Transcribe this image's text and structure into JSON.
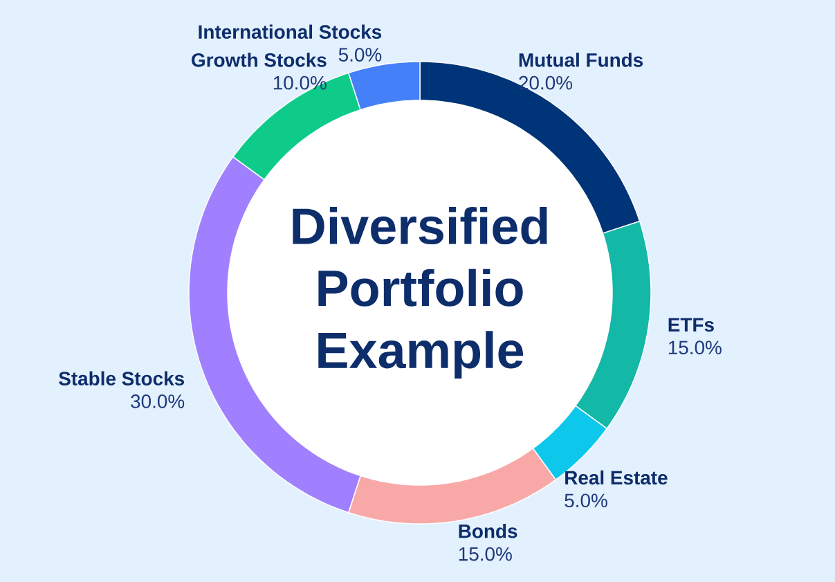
{
  "chart_data": {
    "type": "donut",
    "title": "Diversified Portfolio Example",
    "categories": [
      "Mutual Funds",
      "ETFs",
      "Real Estate",
      "Bonds",
      "Stable Stocks",
      "Growth Stocks",
      "International Stocks"
    ],
    "values": [
      20,
      15,
      5,
      15,
      30,
      10,
      5
    ],
    "value_labels": [
      "20.0%",
      "15.0%",
      "5.0%",
      "15.0%",
      "30.0%",
      "10.0%",
      "5.0%"
    ],
    "colors": [
      "#003478",
      "#14b8a6",
      "#0ec8ec",
      "#f9a8a8",
      "#a080ff",
      "#0fcb8a",
      "#4480f8"
    ]
  }
}
